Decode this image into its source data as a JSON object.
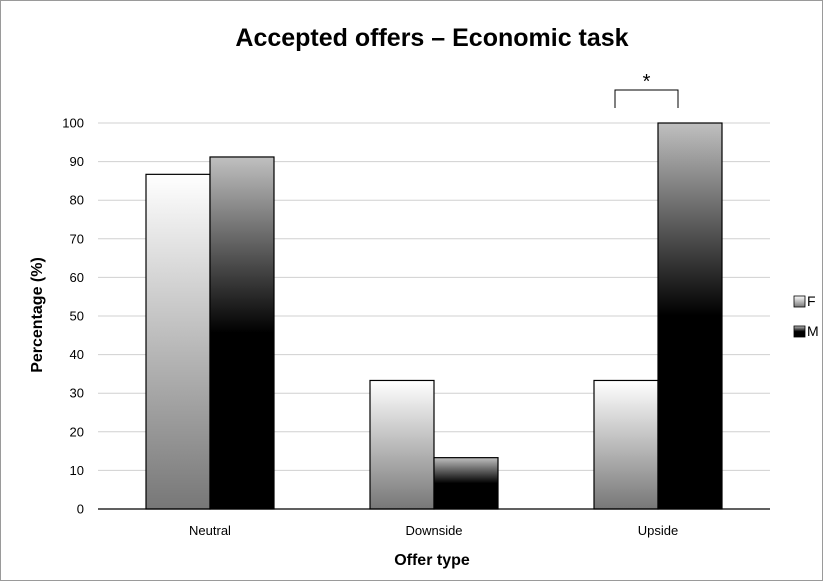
{
  "chart_data": {
    "type": "bar",
    "title": "Accepted offers – Economic task",
    "xlabel": "Offer type",
    "ylabel": "Percentage (%)",
    "categories": [
      "Neutral",
      "Downside",
      "Upside"
    ],
    "series": [
      {
        "name": "F",
        "values": [
          86.7,
          33.3,
          33.3
        ],
        "gradient": [
          "#ffffff",
          "#777777"
        ]
      },
      {
        "name": "M",
        "values": [
          91.2,
          13.3,
          100
        ],
        "gradient": [
          "#c0c0c0",
          "#000000"
        ]
      }
    ],
    "ylim": [
      0,
      100
    ],
    "yticks": [
      0,
      10,
      20,
      30,
      40,
      50,
      60,
      70,
      80,
      90,
      100
    ],
    "grid": true,
    "legend": "right",
    "annotations": [
      {
        "text": "*",
        "category": "Upside",
        "between_series": [
          "F",
          "M"
        ],
        "type": "significance-bracket"
      }
    ]
  }
}
